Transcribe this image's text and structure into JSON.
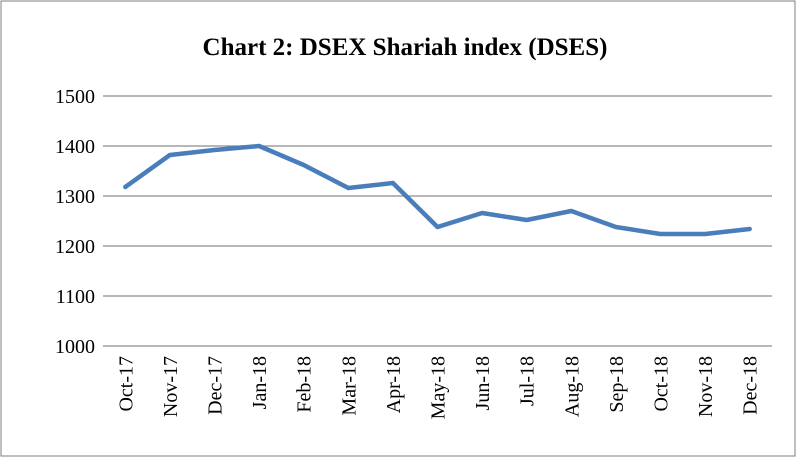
{
  "chart_data": {
    "type": "line",
    "title": "Chart 2: DSEX Shariah index (DSES)",
    "categories": [
      "Oct-17",
      "Nov-17",
      "Dec-17",
      "Jan-18",
      "Feb-18",
      "Mar-18",
      "Apr-18",
      "May-18",
      "Jun-18",
      "Jul-18",
      "Aug-18",
      "Sep-18",
      "Oct-18",
      "Nov-18",
      "Dec-18"
    ],
    "series": [
      {
        "name": "DSES",
        "color": "#4a7ebb",
        "values": [
          1318,
          1382,
          1392,
          1400,
          1362,
          1316,
          1326,
          1238,
          1266,
          1252,
          1270,
          1238,
          1224,
          1224,
          1234
        ]
      }
    ],
    "ylim": [
      1000,
      1500
    ],
    "yticks": [
      1000,
      1100,
      1200,
      1300,
      1400,
      1500
    ],
    "grid": true,
    "legend": false
  }
}
